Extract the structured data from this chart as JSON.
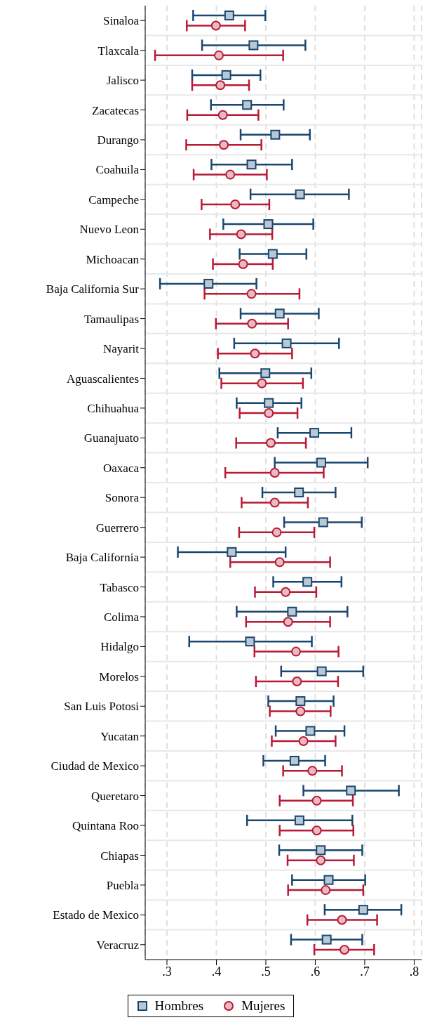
{
  "chart_data": {
    "type": "scatter",
    "orientation": "horizontal",
    "categories": [
      "Sinaloa",
      "Tlaxcala",
      "Jalisco",
      "Zacatecas",
      "Durango",
      "Coahuila",
      "Campeche",
      "Nuevo Leon",
      "Michoacan",
      "Baja California Sur",
      "Tamaulipas",
      "Nayarit",
      "Aguascalientes",
      "Chihuahua",
      "Guanajuato",
      "Oaxaca",
      "Sonora",
      "Guerrero",
      "Baja California",
      "Tabasco",
      "Colima",
      "Hidalgo",
      "Morelos",
      "San Luis Potosi",
      "Yucatan",
      "Ciudad de Mexico",
      "Queretaro",
      "Quintana Roo",
      "Chiapas",
      "Puebla",
      "Estado de Mexico",
      "Veracruz"
    ],
    "series": [
      {
        "name": "Hombres",
        "color": "#1a476f",
        "marker": "square",
        "values": [
          0.426,
          0.475,
          0.42,
          0.462,
          0.519,
          0.471,
          0.569,
          0.505,
          0.514,
          0.384,
          0.528,
          0.542,
          0.499,
          0.506,
          0.598,
          0.612,
          0.567,
          0.616,
          0.431,
          0.584,
          0.553,
          0.468,
          0.613,
          0.57,
          0.59,
          0.558,
          0.672,
          0.568,
          0.611,
          0.627,
          0.697,
          0.623
        ],
        "errors": [
          [
            0.353,
            0.499
          ],
          [
            0.371,
            0.58
          ],
          [
            0.351,
            0.489
          ],
          [
            0.389,
            0.536
          ],
          [
            0.449,
            0.589
          ],
          [
            0.39,
            0.553
          ],
          [
            0.469,
            0.668
          ],
          [
            0.414,
            0.596
          ],
          [
            0.447,
            0.582
          ],
          [
            0.286,
            0.481
          ],
          [
            0.449,
            0.607
          ],
          [
            0.436,
            0.648
          ],
          [
            0.406,
            0.592
          ],
          [
            0.441,
            0.572
          ],
          [
            0.524,
            0.673
          ],
          [
            0.518,
            0.706
          ],
          [
            0.493,
            0.641
          ],
          [
            0.537,
            0.694
          ],
          [
            0.322,
            0.54
          ],
          [
            0.515,
            0.653
          ],
          [
            0.441,
            0.665
          ],
          [
            0.345,
            0.593
          ],
          [
            0.531,
            0.697
          ],
          [
            0.505,
            0.637
          ],
          [
            0.52,
            0.659
          ],
          [
            0.495,
            0.62
          ],
          [
            0.576,
            0.769
          ],
          [
            0.462,
            0.675
          ],
          [
            0.527,
            0.695
          ],
          [
            0.553,
            0.701
          ],
          [
            0.619,
            0.774
          ],
          [
            0.551,
            0.695
          ]
        ]
      },
      {
        "name": "Mujeres",
        "color": "#b81a35",
        "marker": "circle",
        "values": [
          0.399,
          0.405,
          0.408,
          0.413,
          0.415,
          0.428,
          0.438,
          0.45,
          0.454,
          0.471,
          0.472,
          0.478,
          0.492,
          0.506,
          0.51,
          0.518,
          0.518,
          0.522,
          0.528,
          0.54,
          0.545,
          0.561,
          0.563,
          0.57,
          0.576,
          0.594,
          0.603,
          0.603,
          0.611,
          0.621,
          0.654,
          0.659
        ],
        "errors": [
          [
            0.34,
            0.458
          ],
          [
            0.276,
            0.535
          ],
          [
            0.351,
            0.466
          ],
          [
            0.341,
            0.485
          ],
          [
            0.339,
            0.491
          ],
          [
            0.354,
            0.502
          ],
          [
            0.37,
            0.507
          ],
          [
            0.387,
            0.513
          ],
          [
            0.393,
            0.514
          ],
          [
            0.376,
            0.568
          ],
          [
            0.399,
            0.545
          ],
          [
            0.403,
            0.553
          ],
          [
            0.41,
            0.575
          ],
          [
            0.447,
            0.564
          ],
          [
            0.44,
            0.581
          ],
          [
            0.418,
            0.617
          ],
          [
            0.451,
            0.585
          ],
          [
            0.446,
            0.598
          ],
          [
            0.428,
            0.63
          ],
          [
            0.478,
            0.602
          ],
          [
            0.46,
            0.63
          ],
          [
            0.477,
            0.647
          ],
          [
            0.48,
            0.646
          ],
          [
            0.508,
            0.631
          ],
          [
            0.512,
            0.641
          ],
          [
            0.535,
            0.654
          ],
          [
            0.528,
            0.676
          ],
          [
            0.528,
            0.677
          ],
          [
            0.544,
            0.678
          ],
          [
            0.545,
            0.697
          ],
          [
            0.584,
            0.725
          ],
          [
            0.598,
            0.719
          ]
        ]
      }
    ],
    "xlim": [
      0.256,
      0.815
    ],
    "xticks": [
      {
        "value": 0.3,
        "label": ".3"
      },
      {
        "value": 0.4,
        "label": ".4"
      },
      {
        "value": 0.5,
        "label": ".5"
      },
      {
        "value": 0.6,
        "label": ".6"
      },
      {
        "value": 0.7,
        "label": ".7"
      },
      {
        "value": 0.8,
        "label": ".8"
      }
    ],
    "grid": true,
    "legend": "bottom"
  }
}
